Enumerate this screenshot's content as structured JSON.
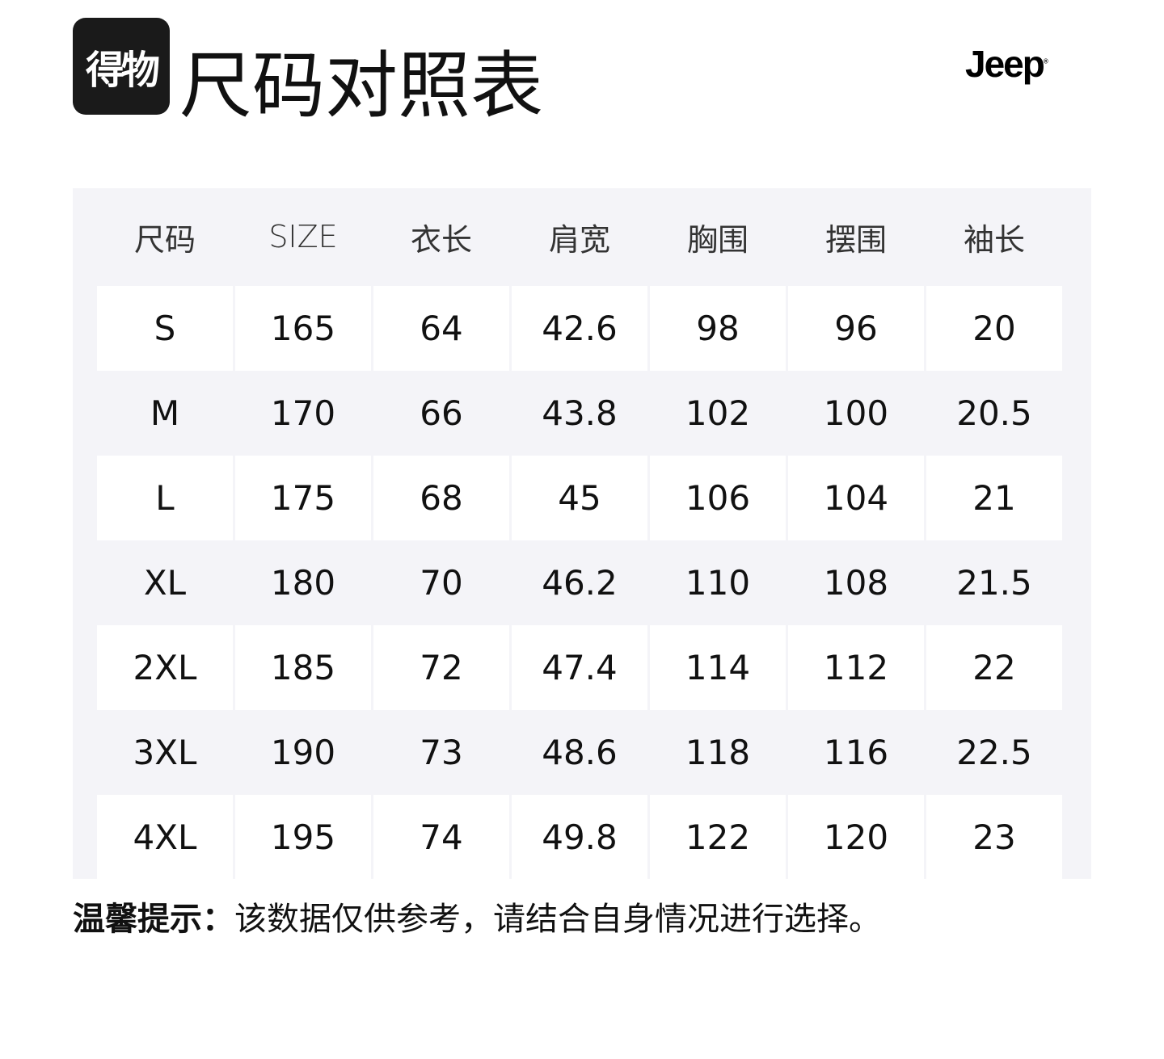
{
  "logo_text": "得物",
  "title": "尺码对照表",
  "brand": "Jeep",
  "table": {
    "headers": [
      "尺码",
      "SIZE",
      "衣长",
      "肩宽",
      "胸围",
      "摆围",
      "袖长"
    ],
    "rows": [
      [
        "S",
        "165",
        "64",
        "42.6",
        "98",
        "96",
        "20"
      ],
      [
        "M",
        "170",
        "66",
        "43.8",
        "102",
        "100",
        "20.5"
      ],
      [
        "L",
        "175",
        "68",
        "45",
        "106",
        "104",
        "21"
      ],
      [
        "XL",
        "180",
        "70",
        "46.2",
        "110",
        "108",
        "21.5"
      ],
      [
        "2XL",
        "185",
        "72",
        "47.4",
        "114",
        "112",
        "22"
      ],
      [
        "3XL",
        "190",
        "73",
        "48.6",
        "118",
        "116",
        "22.5"
      ],
      [
        "4XL",
        "195",
        "74",
        "49.8",
        "122",
        "120",
        "23"
      ]
    ]
  },
  "note": {
    "label": "温馨提示：",
    "text": "该数据仅供参考，请结合自身情况进行选择。"
  },
  "colors": {
    "table_bg": "#f4f4f8",
    "cell_bg": "#ffffff",
    "logo_bg": "#1a1a1a"
  }
}
